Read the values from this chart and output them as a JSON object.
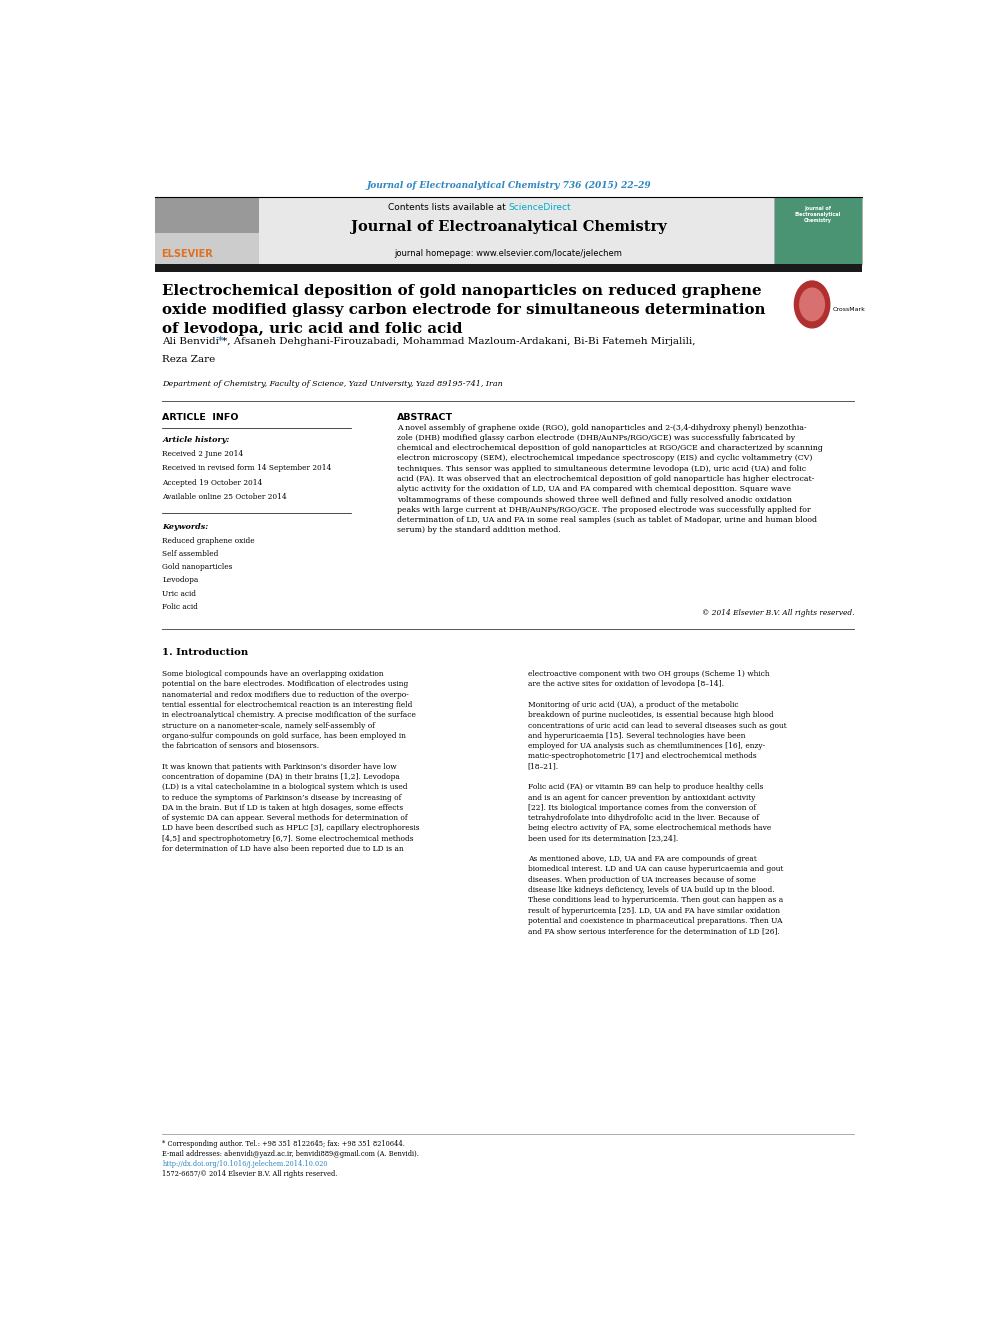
{
  "page_width": 9.92,
  "page_height": 13.23,
  "background_color": "#ffffff",
  "top_journal_ref": "Journal of Electroanalytical Chemistry 736 (2015) 22–29",
  "top_journal_ref_color": "#2e86c1",
  "contents_text": "Contents lists available at ",
  "sciencedirect_text": "ScienceDirect",
  "sciencedirect_color": "#00aacc",
  "journal_name": "Journal of Electroanalytical Chemistry",
  "journal_homepage": "journal homepage: www.elsevier.com/locate/jelechem",
  "header_bg": "#e8e8e8",
  "black_bar_color": "#1a1a1a",
  "elsevier_color": "#e07020",
  "thumb_color": "#4a9474",
  "article_title": "Electrochemical deposition of gold nanoparticles on reduced graphene\noxide modified glassy carbon electrode for simultaneous determination\nof levodopa, uric acid and folic acid",
  "authors_line1": "Ali Benvidi *, Afsaneh Dehghani-Firouzabadi, Mohammad Mazloum-Ardakani, Bi-Bi Fatemeh Mirjalili,",
  "authors_line2": "Reza Zare",
  "affiliation": "Department of Chemistry, Faculty of Science, Yazd University, Yazd 89195-741, Iran",
  "article_info_title": "ARTICLE  INFO",
  "abstract_title": "ABSTRACT",
  "article_history_label": "Article history:",
  "history_items": [
    "Received 2 June 2014",
    "Received in revised form 14 September 2014",
    "Accepted 19 October 2014",
    "Available online 25 October 2014"
  ],
  "keywords_label": "Keywords:",
  "keywords": [
    "Reduced graphene oxide",
    "Self assembled",
    "Gold nanoparticles",
    "Levodopa",
    "Uric acid",
    "Folic acid"
  ],
  "abstract_text": "A novel assembly of graphene oxide (RGO), gold nanoparticles and 2-(3,4-dihydroxy phenyl) benzothia-\nzole (DHB) modified glassy carbon electrode (DHB/AuNPs/RGO/GCE) was successfully fabricated by\nchemical and electrochemical deposition of gold nanoparticles at RGO/GCE and characterized by scanning\nelectron microscopy (SEM), electrochemical impedance spectroscopy (EIS) and cyclic voltammetry (CV)\ntechniques. This sensor was applied to simultaneous determine levodopa (LD), uric acid (UA) and folic\nacid (FA). It was observed that an electrochemical deposition of gold nanoparticle has higher electrocat-\nalytic activity for the oxidation of LD, UA and FA compared with chemical deposition. Square wave\nvoltammograms of these compounds showed three well defined and fully resolved anodic oxidation\npeaks with large current at DHB/AuNPs/RGO/GCE. The proposed electrode was successfully applied for\ndetermination of LD, UA and FA in some real samples (such as tablet of Madopar, urine and human blood\nserum) by the standard addition method.",
  "copyright": "© 2014 Elsevier B.V. All rights reserved.",
  "sec1_title": "1. Introduction",
  "intro_col1": "Some biological compounds have an overlapping oxidation\npotential on the bare electrodes. Modification of electrodes using\nnanomaterial and redox modifiers due to reduction of the overpo-\ntential essential for electrochemical reaction is an interesting field\nin electroanalytical chemistry. A precise modification of the surface\nstructure on a nanometer-scale, namely self-assembly of\norgano-sulfur compounds on gold surface, has been employed in\nthe fabrication of sensors and biosensors.\n\nIt was known that patients with Parkinson’s disorder have low\nconcentration of dopamine (DA) in their brains [1,2]. Levodopa\n(LD) is a vital catecholamine in a biological system which is used\nto reduce the symptoms of Parkinson’s disease by increasing of\nDA in the brain. But if LD is taken at high dosages, some effects\nof systemic DA can appear. Several methods for determination of\nLD have been described such as HPLC [3], capillary electrophoresis\n[4,5] and spectrophotometry [6,7]. Some electrochemical methods\nfor determination of LD have also been reported due to LD is an",
  "intro_col2": "electroactive component with two OH groups (Scheme 1) which\nare the active sites for oxidation of levodopa [8–14].\n\nMonitoring of uric acid (UA), a product of the metabolic\nbreakdown of purine nucleotides, is essential because high blood\nconcentrations of uric acid can lead to several diseases such as gout\nand hyperuricaemia [15]. Several technologies have been\nemployed for UA analysis such as chemiluminences [16], enzy-\nmatic-spectrophotometric [17] and electrochemical methods\n[18–21].\n\nFolic acid (FA) or vitamin B9 can help to produce healthy cells\nand is an agent for cancer prevention by antioxidant activity\n[22]. Its biological importance comes from the conversion of\ntetrahydrofolate into dihydrofolic acid in the liver. Because of\nbeing electro activity of FA, some electrochemical methods have\nbeen used for its determination [23,24].\n\nAs mentioned above, LD, UA and FA are compounds of great\nbiomedical interest. LD and UA can cause hyperuricaemia and gout\ndiseases. When production of UA increases because of some\ndisease like kidneys deficiency, levels of UA build up in the blood.\nThese conditions lead to hyperuricemia. Then gout can happen as a\nresult of hyperuricemia [25]. LD, UA and FA have similar oxidation\npotential and coexistence in pharmaceutical preparations. Then UA\nand FA show serious interference for the determination of LD [26].",
  "footer_text1": "* Corresponding author. Tel.: +98 351 8122645; fax: +98 351 8210644.",
  "footer_text2": "E-mail addresses: abenvidi@yazd.ac.ir, benvidi889@gmail.com (A. Benvidi).",
  "footer_doi": "http://dx.doi.org/10.1016/j.jelechem.2014.10.020",
  "footer_issn": "1572-6657/© 2014 Elsevier B.V. All rights reserved."
}
